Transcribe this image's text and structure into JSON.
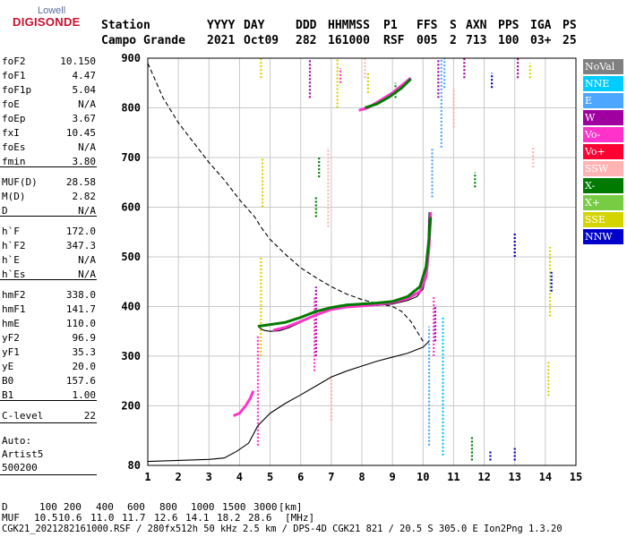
{
  "logo": {
    "line1": "Lowell",
    "line2": "DIGISONDE"
  },
  "header": {
    "labels": [
      "Station",
      "YYYY",
      "DAY",
      "DDD",
      "HHMMSS",
      "P1",
      "FFS",
      "S",
      "AXN",
      "PPS",
      "IGA",
      "PS"
    ],
    "values": [
      "Campo Grande",
      "2021",
      "Oct09",
      "282",
      "161000",
      "RSF",
      "005",
      "2",
      "713",
      "100",
      "03+",
      "25"
    ]
  },
  "params": [
    {
      "name": "foF2",
      "value": "10.150"
    },
    {
      "name": "foF1",
      "value": "4.47"
    },
    {
      "name": "foF1p",
      "value": "5.04"
    },
    {
      "name": "foE",
      "value": "N/A"
    },
    {
      "name": "foEp",
      "value": "3.67"
    },
    {
      "name": "fxI",
      "value": "10.45"
    },
    {
      "name": "foEs",
      "value": "N/A"
    },
    {
      "name": "fmin",
      "value": "3.80"
    },
    {
      "name": "MUF(D)",
      "value": "28.58"
    },
    {
      "name": "M(D)",
      "value": "2.82"
    },
    {
      "name": "D",
      "value": "N/A"
    },
    {
      "name": "h`F",
      "value": "172.0"
    },
    {
      "name": "h`F2",
      "value": "347.3"
    },
    {
      "name": "h`E",
      "value": "N/A"
    },
    {
      "name": "h`Es",
      "value": "N/A"
    },
    {
      "name": "hmF2",
      "value": "338.0"
    },
    {
      "name": "hmF1",
      "value": "141.7"
    },
    {
      "name": "hmE",
      "value": "110.0"
    },
    {
      "name": "yF2",
      "value": "96.9"
    },
    {
      "name": "yF1",
      "value": "35.3"
    },
    {
      "name": "yE",
      "value": "20.0"
    },
    {
      "name": "B0",
      "value": "157.6"
    },
    {
      "name": "B1",
      "value": "1.00"
    },
    {
      "name": "C-level",
      "value": "22"
    }
  ],
  "auto": {
    "line1": "Auto:",
    "line2": "Artist5",
    "line3": "500200"
  },
  "legend": [
    {
      "label": "NoVal",
      "color": "#808080"
    },
    {
      "label": "NNE",
      "color": "#00ccff"
    },
    {
      "label": "E",
      "color": "#4da6ff"
    },
    {
      "label": "W",
      "color": "#a000a0"
    },
    {
      "label": "Vo-",
      "color": "#ff33cc"
    },
    {
      "label": "Vo+",
      "color": "#ff0033"
    },
    {
      "label": "SSW",
      "color": "#ffb3b3"
    },
    {
      "label": "X-",
      "color": "#007a00"
    },
    {
      "label": "X+",
      "color": "#77cc44"
    },
    {
      "label": "SSE",
      "color": "#d4d400"
    },
    {
      "label": "NNW",
      "color": "#0000cc"
    }
  ],
  "muf_table": {
    "d_label": "D",
    "d_values": [
      "100",
      "200",
      "400",
      "600",
      "800",
      "1000",
      "1500",
      "3000"
    ],
    "d_unit": "[km]",
    "muf_label": "MUF",
    "muf_values": [
      "10.5",
      "10.6",
      "11.0",
      "11.7",
      "12.6",
      "14.1",
      "18.2",
      "28.6"
    ],
    "muf_unit": "[MHz]"
  },
  "footer": "CGK21_2021282161000.RSF / 280fx512h 50 kHz 2.5 km / DPS-4D CGK21 821 / 20.5 S 305.0 E Ion2Png 1.3.20",
  "chart_data": {
    "type": "scatter",
    "xlim": [
      1,
      15
    ],
    "ylim": [
      80,
      900
    ],
    "x_ticks": [
      "1",
      "2",
      "3",
      "4",
      "5",
      "6",
      "7",
      "8",
      "9",
      "10",
      "11",
      "12",
      "13",
      "14",
      "15"
    ],
    "y_ticks": [
      "80",
      "200",
      "300",
      "400",
      "500",
      "600",
      "700",
      "800",
      "900"
    ],
    "grid": true,
    "curves": [
      {
        "name": "",
        "color": "#000000",
        "style": "dashed",
        "points": [
          [
            1,
            890
          ],
          [
            1.5,
            820
          ],
          [
            2,
            770
          ],
          [
            2.5,
            730
          ],
          [
            3,
            690
          ],
          [
            3.5,
            655
          ],
          [
            4,
            615
          ],
          [
            4.5,
            580
          ],
          [
            4.7,
            560
          ],
          [
            5,
            535
          ],
          [
            5.5,
            505
          ],
          [
            6,
            478
          ],
          [
            6.5,
            458
          ],
          [
            7,
            440
          ],
          [
            7.5,
            425
          ],
          [
            8,
            414
          ],
          [
            8.5,
            406
          ],
          [
            9,
            400
          ],
          [
            9.3,
            390
          ],
          [
            9.6,
            370
          ],
          [
            10,
            330
          ]
        ]
      },
      {
        "name": "",
        "color": "#000000",
        "style": "solid",
        "points": [
          [
            1,
            88
          ],
          [
            2,
            90
          ],
          [
            3,
            92
          ],
          [
            3.5,
            95
          ],
          [
            3.9,
            108
          ],
          [
            4.3,
            125
          ],
          [
            4.6,
            160
          ],
          [
            5,
            185
          ],
          [
            5.5,
            205
          ],
          [
            6,
            222
          ],
          [
            6.5,
            240
          ],
          [
            7,
            258
          ],
          [
            7.5,
            270
          ],
          [
            8,
            280
          ],
          [
            8.5,
            290
          ],
          [
            9,
            298
          ],
          [
            9.5,
            306
          ],
          [
            10,
            318
          ],
          [
            10.2,
            330
          ]
        ]
      },
      {
        "name": "",
        "color": "#000000",
        "style": "solid",
        "points": [
          [
            4.65,
            357
          ],
          [
            4.8,
            352
          ],
          [
            5.0,
            350
          ],
          [
            5.3,
            351
          ],
          [
            5.6,
            357
          ],
          [
            6,
            368
          ],
          [
            6.5,
            382
          ],
          [
            7,
            393
          ],
          [
            7.5,
            398
          ],
          [
            8,
            400
          ],
          [
            8.5,
            402
          ],
          [
            9,
            405
          ],
          [
            9.5,
            412
          ],
          [
            9.8,
            420
          ],
          [
            10.0,
            435
          ],
          [
            10.1,
            460
          ],
          [
            10.15,
            500
          ],
          [
            10.18,
            560
          ],
          [
            10.2,
            590
          ]
        ]
      },
      {
        "name": "",
        "color": "#ff33cc",
        "style": "solid",
        "points": [
          [
            5.1,
            352
          ],
          [
            5.5,
            358
          ],
          [
            6,
            370
          ],
          [
            6.5,
            383
          ],
          [
            7,
            394
          ],
          [
            7.5,
            399
          ],
          [
            8,
            401
          ],
          [
            8.5,
            404
          ],
          [
            9,
            408
          ],
          [
            9.5,
            416
          ],
          [
            9.9,
            430
          ],
          [
            10.1,
            460
          ],
          [
            10.2,
            520
          ],
          [
            10.25,
            590
          ]
        ]
      },
      {
        "name": "",
        "color": "#007a00",
        "style": "solid",
        "points": [
          [
            4.6,
            360
          ],
          [
            5.5,
            368
          ],
          [
            6,
            378
          ],
          [
            6.5,
            390
          ],
          [
            7,
            398
          ],
          [
            7.5,
            403
          ],
          [
            8,
            405
          ],
          [
            8.5,
            407
          ],
          [
            9,
            410
          ],
          [
            9.5,
            420
          ],
          [
            9.9,
            440
          ],
          [
            10.1,
            480
          ],
          [
            10.2,
            540
          ],
          [
            10.25,
            580
          ]
        ]
      },
      {
        "name": "",
        "color": "#ff33cc",
        "style": "solid",
        "points": [
          [
            3.8,
            180
          ],
          [
            4.0,
            185
          ],
          [
            4.2,
            200
          ],
          [
            4.35,
            215
          ],
          [
            4.45,
            230
          ]
        ]
      },
      {
        "name": "",
        "color": "#ff33cc",
        "style": "solid",
        "points": [
          [
            7.9,
            795
          ],
          [
            8.2,
            800
          ],
          [
            8.6,
            815
          ],
          [
            9.0,
            830
          ],
          [
            9.3,
            845
          ],
          [
            9.6,
            860
          ]
        ]
      },
      {
        "name": "",
        "color": "#007a00",
        "style": "solid",
        "points": [
          [
            8.1,
            800
          ],
          [
            8.5,
            808
          ],
          [
            8.9,
            822
          ],
          [
            9.3,
            840
          ],
          [
            9.6,
            858
          ]
        ]
      }
    ],
    "traces": [
      {
        "x": 4.7,
        "y0": 300,
        "y1": 500,
        "color": "#d4d400"
      },
      {
        "x": 4.6,
        "y0": 120,
        "y1": 340,
        "color": "#ff33cc"
      },
      {
        "x": 4.75,
        "y0": 600,
        "y1": 700,
        "color": "#d4d400"
      },
      {
        "x": 4.7,
        "y0": 860,
        "y1": 900,
        "color": "#d4d400"
      },
      {
        "x": 6.3,
        "y0": 820,
        "y1": 900,
        "color": "#a000a0"
      },
      {
        "x": 6.5,
        "y0": 300,
        "y1": 440,
        "color": "#a000a0"
      },
      {
        "x": 6.45,
        "y0": 270,
        "y1": 420,
        "color": "#ff33cc"
      },
      {
        "x": 6.5,
        "y0": 580,
        "y1": 620,
        "color": "#007a00"
      },
      {
        "x": 6.6,
        "y0": 660,
        "y1": 700,
        "color": "#007a00"
      },
      {
        "x": 6.9,
        "y0": 560,
        "y1": 720,
        "color": "#ffb3b3"
      },
      {
        "x": 7.0,
        "y0": 170,
        "y1": 260,
        "color": "#ffb3b3"
      },
      {
        "x": 7.2,
        "y0": 800,
        "y1": 900,
        "color": "#d4d400"
      },
      {
        "x": 7.3,
        "y0": 850,
        "y1": 880,
        "color": "#ff33cc"
      },
      {
        "x": 8.1,
        "y0": 860,
        "y1": 900,
        "color": "#ffb3b3"
      },
      {
        "x": 8.2,
        "y0": 830,
        "y1": 870,
        "color": "#d4d400"
      },
      {
        "x": 9.1,
        "y0": 820,
        "y1": 850,
        "color": "#007a00"
      },
      {
        "x": 10.2,
        "y0": 120,
        "y1": 360,
        "color": "#4da6ff"
      },
      {
        "x": 10.35,
        "y0": 300,
        "y1": 420,
        "color": "#ff33cc"
      },
      {
        "x": 10.4,
        "y0": 330,
        "y1": 400,
        "color": "#a000a0"
      },
      {
        "x": 10.5,
        "y0": 820,
        "y1": 900,
        "color": "#a000a0"
      },
      {
        "x": 10.6,
        "y0": 720,
        "y1": 900,
        "color": "#4da6ff"
      },
      {
        "x": 10.65,
        "y0": 100,
        "y1": 380,
        "color": "#00ccff"
      },
      {
        "x": 10.7,
        "y0": 840,
        "y1": 900,
        "color": "#4da6ff"
      },
      {
        "x": 10.3,
        "y0": 620,
        "y1": 720,
        "color": "#4da6ff"
      },
      {
        "x": 11.0,
        "y0": 760,
        "y1": 840,
        "color": "#ffb3b3"
      },
      {
        "x": 11.35,
        "y0": 860,
        "y1": 900,
        "color": "#a000a0"
      },
      {
        "x": 11.6,
        "y0": 90,
        "y1": 140,
        "color": "#007a00"
      },
      {
        "x": 11.7,
        "y0": 640,
        "y1": 670,
        "color": "#007a00"
      },
      {
        "x": 12.2,
        "y0": 90,
        "y1": 110,
        "color": "#0000cc"
      },
      {
        "x": 12.25,
        "y0": 840,
        "y1": 870,
        "color": "#0000cc"
      },
      {
        "x": 13.0,
        "y0": 90,
        "y1": 115,
        "color": "#0000cc"
      },
      {
        "x": 13.0,
        "y0": 500,
        "y1": 550,
        "color": "#0000cc"
      },
      {
        "x": 13.1,
        "y0": 860,
        "y1": 900,
        "color": "#a000a0"
      },
      {
        "x": 13.5,
        "y0": 860,
        "y1": 890,
        "color": "#d4d400"
      },
      {
        "x": 13.6,
        "y0": 680,
        "y1": 720,
        "color": "#ffb3b3"
      },
      {
        "x": 14.1,
        "y0": 220,
        "y1": 290,
        "color": "#d4d400"
      },
      {
        "x": 14.15,
        "y0": 380,
        "y1": 520,
        "color": "#d4d400"
      },
      {
        "x": 14.2,
        "y0": 430,
        "y1": 470,
        "color": "#0000cc"
      }
    ]
  }
}
